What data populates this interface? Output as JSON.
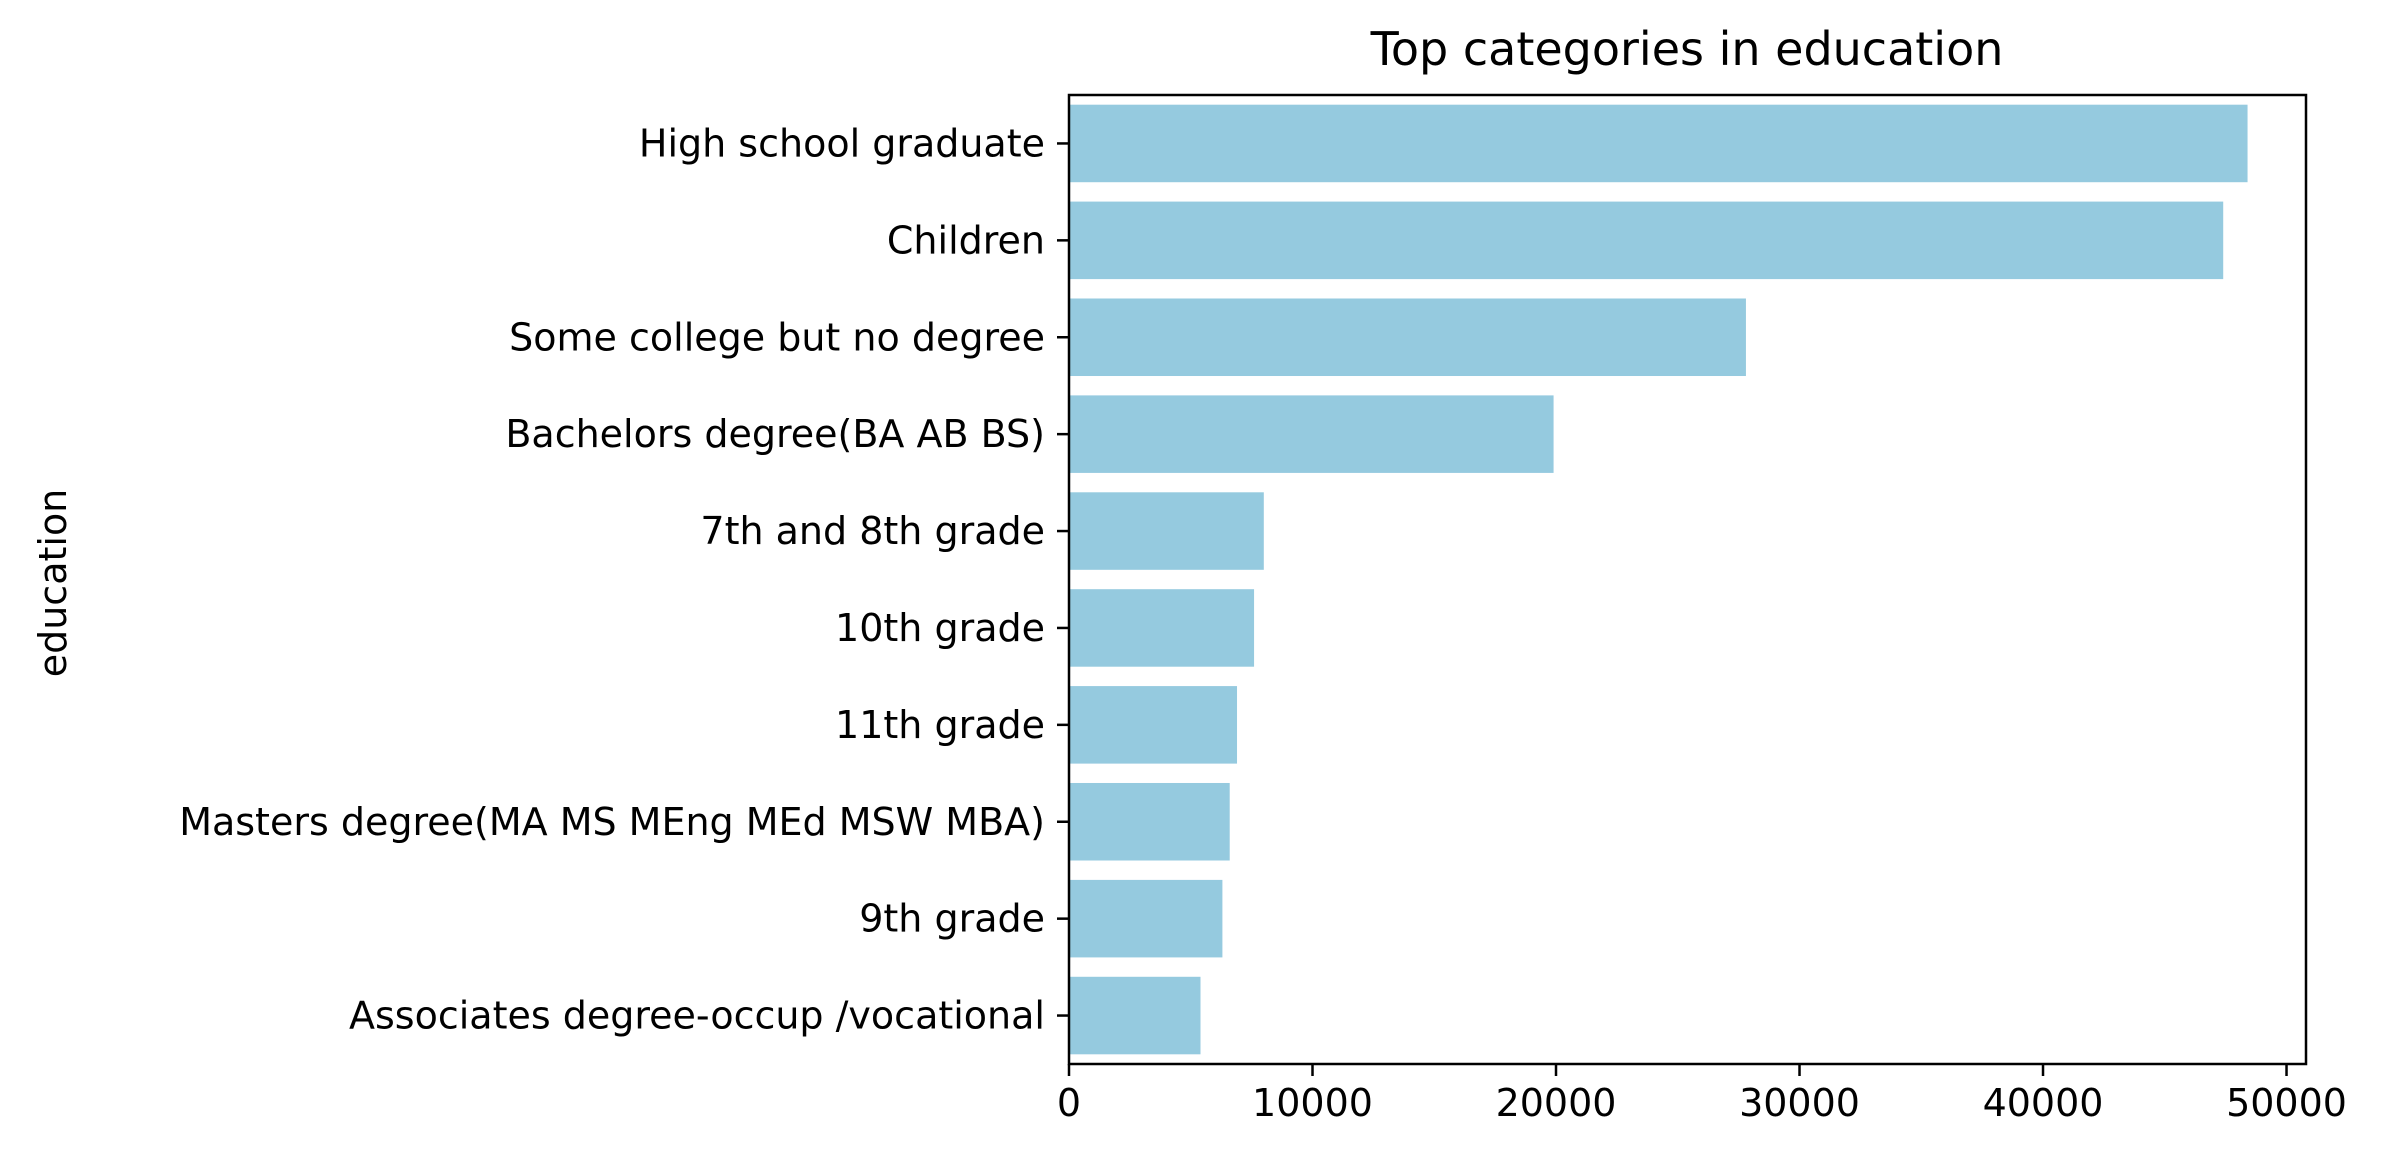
{
  "chart_data": {
    "type": "bar",
    "orientation": "horizontal",
    "title": "Top categories in education",
    "xlabel": "",
    "ylabel": "education",
    "categories": [
      "High school graduate",
      "Children",
      "Some college but no degree",
      "Bachelors degree(BA AB BS)",
      "7th and 8th grade",
      "10th grade",
      "11th grade",
      "Masters degree(MA MS MEng MEd MSW MBA)",
      "9th grade",
      "Associates degree-occup /vocational"
    ],
    "values": [
      48400,
      47400,
      27800,
      19900,
      8000,
      7600,
      6900,
      6600,
      6300,
      5400
    ],
    "xlim": [
      0,
      50800
    ],
    "xticks": [
      0,
      10000,
      20000,
      30000,
      40000,
      50000
    ],
    "xtick_labels": [
      "0",
      "10000",
      "20000",
      "30000",
      "40000",
      "50000"
    ],
    "bar_color": "#95cadf",
    "grid": false,
    "legend": "none"
  }
}
